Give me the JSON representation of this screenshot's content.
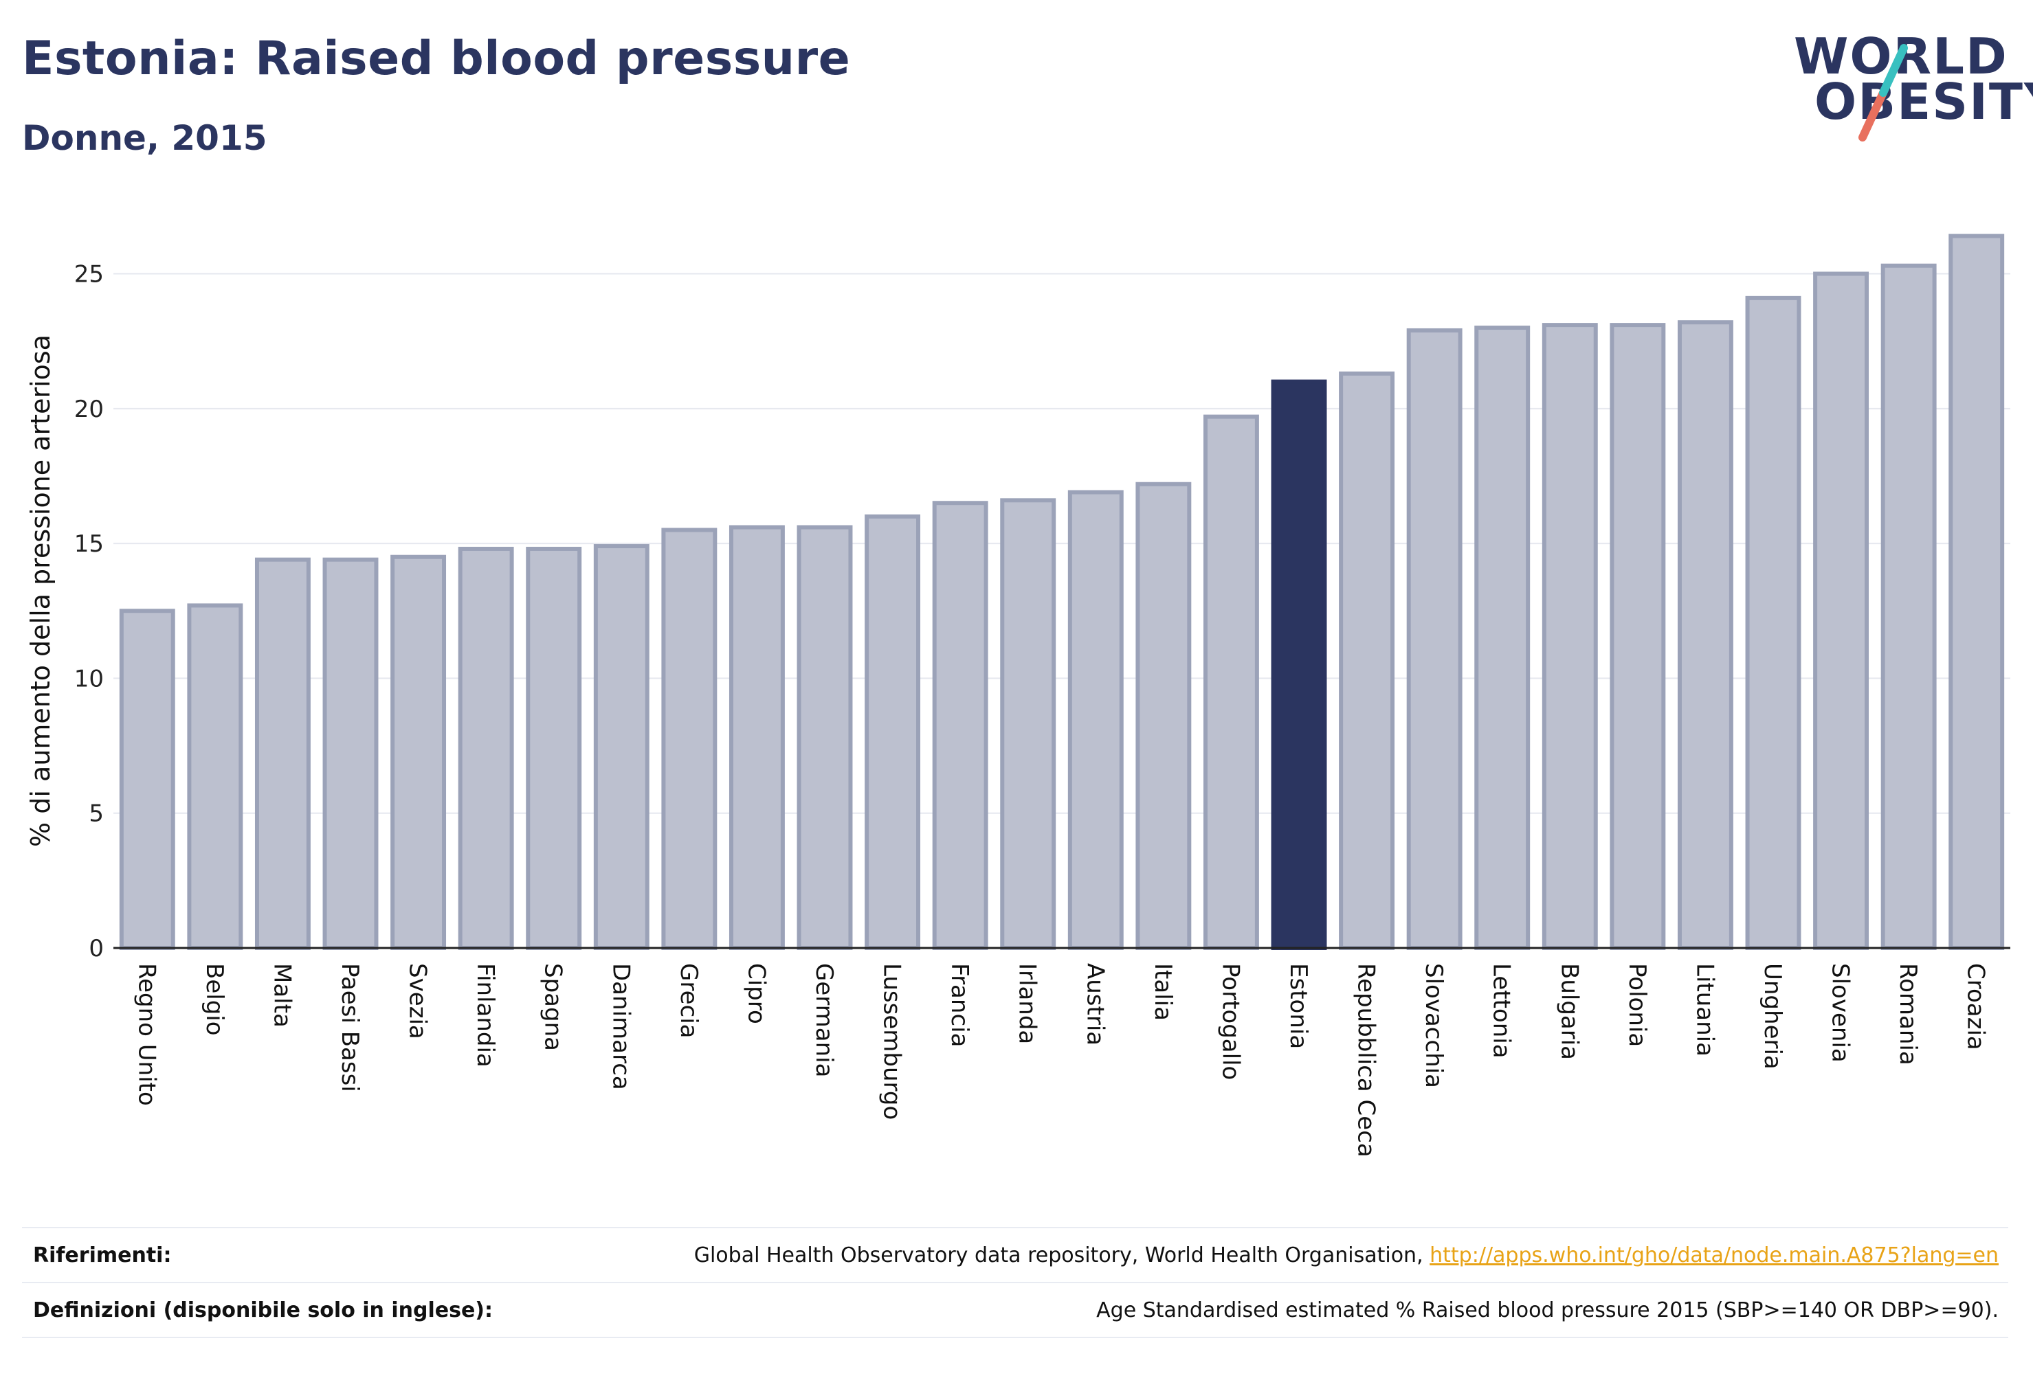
{
  "header": {
    "title": "Estonia: Raised blood pressure",
    "subtitle": "Donne, 2015",
    "logo_line1": "WORLD",
    "logo_line2": "OBESITY"
  },
  "colors": {
    "bar": "#bcc0cf",
    "bar_border": "#9ba2b8",
    "highlight": "#2b3560",
    "grid": "#e6e8ef",
    "logo_teal": "#38c0c0",
    "logo_coral": "#e8705e"
  },
  "chart_data": {
    "type": "bar",
    "title": "Estonia: Raised blood pressure",
    "subtitle": "Donne, 2015",
    "ylabel": "% di aumento della pressione arteriosa",
    "xlabel": "",
    "ylim": [
      0,
      27
    ],
    "yticks": [
      0,
      5,
      10,
      15,
      20,
      25
    ],
    "grid": true,
    "highlight": "Estonia",
    "categories": [
      "Regno Unito",
      "Belgio",
      "Malta",
      "Paesi Bassi",
      "Svezia",
      "Finlandia",
      "Spagna",
      "Danimarca",
      "Grecia",
      "Cipro",
      "Germania",
      "Lussemburgo",
      "Francia",
      "Irlanda",
      "Austria",
      "Italia",
      "Portogallo",
      "Estonia",
      "Repubblica Ceca",
      "Slovacchia",
      "Lettonia",
      "Bulgaria",
      "Polonia",
      "Lituania",
      "Ungheria",
      "Slovenia",
      "Romania",
      "Croazia"
    ],
    "values": [
      12.5,
      12.7,
      14.4,
      14.4,
      14.5,
      14.8,
      14.8,
      14.9,
      15.5,
      15.6,
      15.6,
      16.0,
      16.5,
      16.6,
      16.9,
      17.2,
      19.7,
      21.0,
      21.3,
      22.9,
      23.0,
      23.1,
      23.1,
      23.2,
      24.1,
      25.0,
      25.3,
      26.4
    ]
  },
  "footer": {
    "references_label": "Riferimenti:",
    "references_text": "Global Health Observatory data repository, World Health Organisation, ",
    "references_link": "http://apps.who.int/gho/data/node.main.A875?lang=en",
    "definitions_label": "Definizioni (disponibile solo in inglese):",
    "definitions_text": "Age Standardised estimated % Raised blood pressure 2015 (SBP>=140 OR DBP>=90)."
  }
}
